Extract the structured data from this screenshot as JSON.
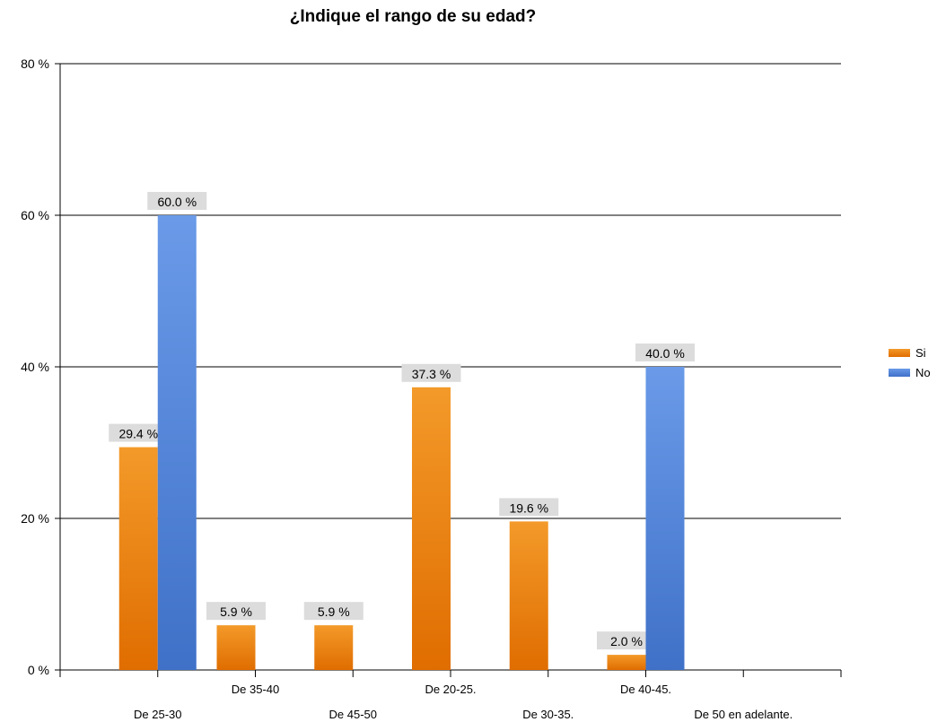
{
  "chart_data": {
    "type": "bar",
    "title": "¿Indique el rango de su edad?",
    "categories": [
      "De 25-30",
      "De 35-40",
      "De 45-50",
      "De 20-25.",
      "De 30-35.",
      "De 40-45.",
      "De 50 en adelante."
    ],
    "series": [
      {
        "name": "Si",
        "values": [
          29.4,
          5.9,
          5.9,
          37.3,
          19.6,
          2.0,
          null
        ],
        "color": "#f07800",
        "color_light": "#f39a2a",
        "color_dark": "#e06d00"
      },
      {
        "name": "No",
        "values": [
          60.0,
          null,
          null,
          null,
          null,
          40.0,
          null
        ],
        "color": "#4f86d9",
        "color_light": "#6a9ae8",
        "color_dark": "#3f71c8"
      }
    ],
    "data_labels": [
      [
        "29.4 %",
        "5.9 %",
        "5.9 %",
        "37.3 %",
        "19.6 %",
        "2.0 %",
        null
      ],
      [
        "60.0 %",
        null,
        null,
        null,
        null,
        "40.0 %",
        null
      ]
    ],
    "yticks": [
      0,
      20,
      40,
      60,
      80
    ],
    "ytick_labels": [
      "0 %",
      "20 %",
      "40 %",
      "60 %",
      "80 %"
    ],
    "ylim": [
      0,
      80
    ],
    "xlabel": "",
    "ylabel": "",
    "grid": true,
    "legend_position": "right"
  }
}
